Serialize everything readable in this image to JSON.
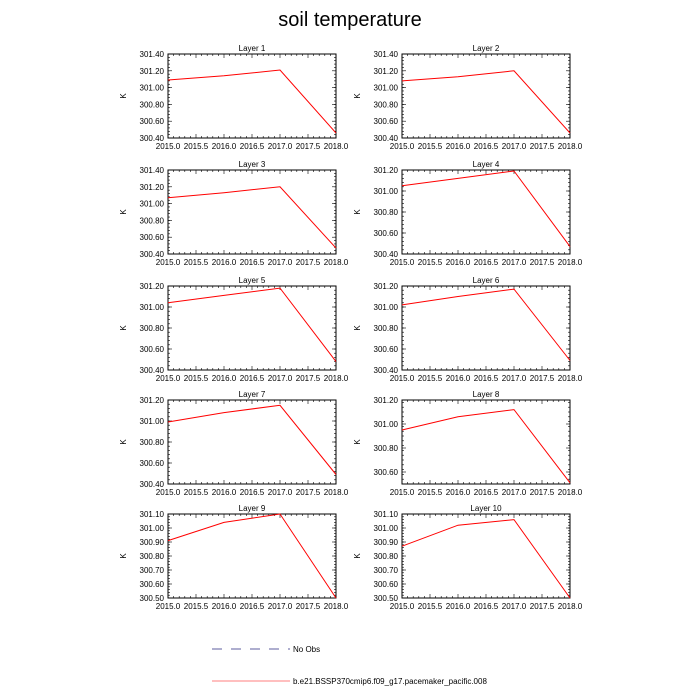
{
  "title": "soil temperature",
  "chart_data": {
    "type": "line",
    "title": "soil temperature",
    "ylabel": "K",
    "xlabel": "",
    "x": [
      2015.0,
      2016.0,
      2017.0,
      2018.0
    ],
    "xlim": [
      2015.0,
      2018.0
    ],
    "xticks": [
      "2015.0",
      "2015.5",
      "2016.0",
      "2016.5",
      "2017.0",
      "2017.5",
      "2018.0"
    ],
    "line_color": "#ff0000",
    "panels": [
      {
        "name": "Layer 1",
        "ylim": [
          300.4,
          301.4
        ],
        "yticks": [
          "300.40",
          "300.60",
          "300.80",
          "301.00",
          "301.20",
          "301.40"
        ],
        "values": [
          301.09,
          301.14,
          301.21,
          300.46
        ]
      },
      {
        "name": "Layer 2",
        "ylim": [
          300.4,
          301.4
        ],
        "yticks": [
          "300.40",
          "300.60",
          "300.80",
          "301.00",
          "301.20",
          "301.40"
        ],
        "values": [
          301.08,
          301.13,
          301.2,
          300.46
        ]
      },
      {
        "name": "Layer 3",
        "ylim": [
          300.4,
          301.4
        ],
        "yticks": [
          "300.40",
          "300.60",
          "300.80",
          "301.00",
          "301.20",
          "301.40"
        ],
        "values": [
          301.07,
          301.13,
          301.2,
          300.47
        ]
      },
      {
        "name": "Layer 4",
        "ylim": [
          300.4,
          301.2
        ],
        "yticks": [
          "300.40",
          "300.60",
          "300.80",
          "301.00",
          "301.20"
        ],
        "values": [
          301.05,
          301.12,
          301.19,
          300.47
        ]
      },
      {
        "name": "Layer 5",
        "ylim": [
          300.4,
          301.2
        ],
        "yticks": [
          "300.40",
          "300.60",
          "300.80",
          "301.00",
          "301.20"
        ],
        "values": [
          301.04,
          301.11,
          301.18,
          300.48
        ]
      },
      {
        "name": "Layer 6",
        "ylim": [
          300.4,
          301.2
        ],
        "yticks": [
          "300.40",
          "300.60",
          "300.80",
          "301.00",
          "301.20"
        ],
        "values": [
          301.02,
          301.1,
          301.17,
          300.49
        ]
      },
      {
        "name": "Layer 7",
        "ylim": [
          300.4,
          301.2
        ],
        "yticks": [
          "300.40",
          "300.60",
          "300.80",
          "301.00",
          "301.20"
        ],
        "values": [
          300.99,
          301.08,
          301.15,
          300.49
        ]
      },
      {
        "name": "Layer 8",
        "ylim": [
          300.5,
          301.2
        ],
        "yticks": [
          "300.60",
          "300.80",
          "301.00",
          "301.20"
        ],
        "values": [
          300.95,
          301.06,
          301.12,
          300.51
        ]
      },
      {
        "name": "Layer 9",
        "ylim": [
          300.5,
          301.1
        ],
        "yticks": [
          "300.50",
          "300.60",
          "300.70",
          "300.80",
          "300.90",
          "301.00",
          "301.10"
        ],
        "values": [
          300.91,
          301.04,
          301.1,
          300.5
        ]
      },
      {
        "name": "Layer 10",
        "ylim": [
          300.5,
          301.1
        ],
        "yticks": [
          "300.50",
          "300.60",
          "300.70",
          "300.80",
          "300.90",
          "301.00",
          "301.10"
        ],
        "values": [
          300.87,
          301.02,
          301.06,
          300.5
        ]
      }
    ],
    "legend": [
      {
        "label": "No Obs",
        "style": "dashed",
        "color": "#2a2a80"
      },
      {
        "label": "b.e21.BSSP370cmip6.f09_g17.pacemaker_pacific.008",
        "style": "solid",
        "color": "#ff0000"
      }
    ]
  }
}
